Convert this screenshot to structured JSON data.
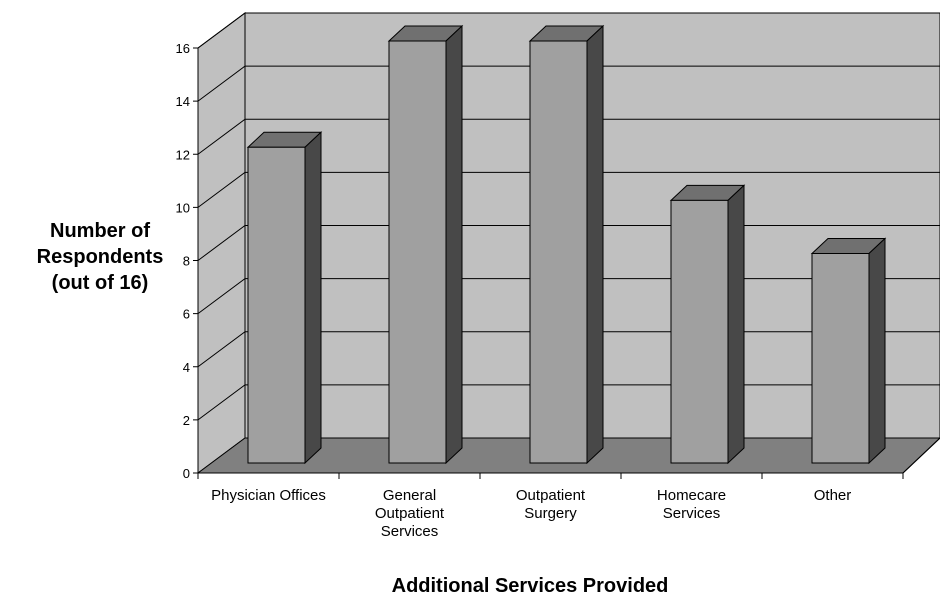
{
  "chart_data": {
    "type": "bar",
    "categories": [
      [
        "Physician Offices"
      ],
      [
        "General",
        "Outpatient",
        "Services"
      ],
      [
        "Outpatient",
        "Surgery"
      ],
      [
        "Homecare",
        "Services"
      ],
      [
        "Other"
      ]
    ],
    "values": [
      12,
      16,
      16,
      10,
      8
    ],
    "ylabel": [
      "Number of",
      "Respondents",
      "(out of 16)"
    ],
    "xlabel": "Additional Services Provided",
    "ylim": [
      0,
      16
    ],
    "yticks": [
      0,
      2,
      4,
      6,
      8,
      10,
      12,
      14,
      16
    ],
    "grid": true,
    "style": "3d-column"
  },
  "colors": {
    "wall": "#c0c0c0",
    "floor": "#808080",
    "bar_front": "#a0a0a0",
    "bar_top": "#707070",
    "bar_side": "#484848"
  }
}
